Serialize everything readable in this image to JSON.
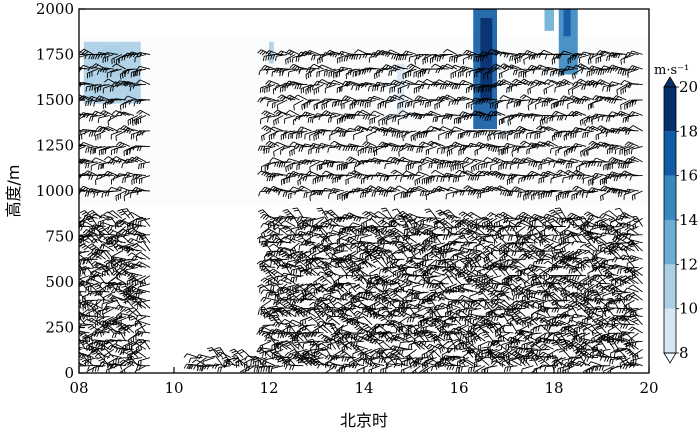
{
  "chart_data": {
    "type": "heatmap",
    "title": "",
    "xlabel": "北京时",
    "ylabel": "高度/m",
    "xlim": [
      8,
      20
    ],
    "ylim": [
      0,
      2000
    ],
    "x_tick_labels": [
      "08",
      "10",
      "12",
      "14",
      "16",
      "18",
      "20"
    ],
    "x_tick_values": [
      8,
      10,
      12,
      14,
      16,
      18,
      20
    ],
    "y_tick_values": [
      0,
      250,
      500,
      750,
      1000,
      1250,
      1500,
      1750,
      2000
    ],
    "y_tick_labels": [
      "0",
      "250",
      "500",
      "750",
      "1000",
      "1250",
      "1500",
      "1750",
      "2000"
    ],
    "colorbar": {
      "label": "m·s⁻¹",
      "min": 8,
      "max": 20,
      "ticks": [
        "8",
        "10",
        "12",
        "14",
        "16",
        "18",
        "20"
      ],
      "tick_values": [
        8,
        10,
        12,
        14,
        16,
        18,
        20
      ],
      "colors": [
        "#f5fafe",
        "#d6e6f4",
        "#abcfe5",
        "#6aaed6",
        "#3787c0",
        "#105ba4",
        "#08306b"
      ]
    },
    "heat_cells": [
      {
        "x0": 8.1,
        "x1": 9.3,
        "y0": 1480,
        "y1": 1820,
        "value": 11
      },
      {
        "x0": 8.5,
        "x1": 8.9,
        "y0": 1620,
        "y1": 1800,
        "value": 12
      },
      {
        "x0": 12.0,
        "x1": 12.1,
        "y0": 1700,
        "y1": 1820,
        "value": 11
      },
      {
        "x0": 14.7,
        "x1": 14.85,
        "y0": 1420,
        "y1": 1700,
        "value": 10
      },
      {
        "x0": 16.3,
        "x1": 16.8,
        "y0": 1340,
        "y1": 2000,
        "value": 18
      },
      {
        "x0": 16.45,
        "x1": 16.7,
        "y0": 1500,
        "y1": 1950,
        "value": 19
      },
      {
        "x0": 17.8,
        "x1": 18.0,
        "y0": 1880,
        "y1": 2000,
        "value": 14
      },
      {
        "x0": 18.1,
        "x1": 18.5,
        "y0": 1640,
        "y1": 2000,
        "value": 15
      },
      {
        "x0": 18.2,
        "x1": 18.35,
        "y0": 1850,
        "y1": 2000,
        "value": 17
      },
      {
        "x0": 8.0,
        "x1": 20.0,
        "y0": 920,
        "y1": 1850,
        "value": 8.5
      }
    ],
    "barb_rows_upper": [
      1000,
      1085,
      1160,
      1245,
      1330,
      1415,
      1500,
      1585,
      1670,
      1750
    ],
    "barb_rows_lower": [
      40,
      85,
      130,
      175,
      220,
      265,
      310,
      355,
      400,
      445,
      490,
      535,
      580,
      625,
      670,
      715,
      760,
      805,
      850
    ],
    "data_gaps": [
      {
        "x0": 9.6,
        "x1": 10.5,
        "y0": 0,
        "y1": 2000
      },
      {
        "x0": 10.5,
        "x1": 11.9,
        "y0": 120,
        "y1": 2000
      }
    ]
  }
}
